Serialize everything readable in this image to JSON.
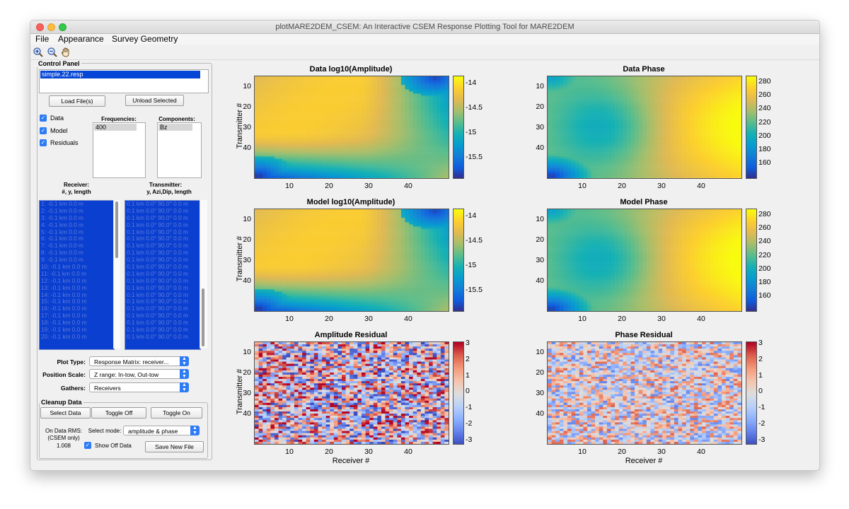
{
  "window": {
    "title": "plotMARE2DEM_CSEM: An Interactive CSEM Response Plotting Tool for MARE2DEM"
  },
  "menu": [
    "File",
    "Appearance",
    "Survey Geometry"
  ],
  "toolbar": {
    "tools": [
      "zoom-in-icon",
      "zoom-out-icon",
      "pan-hand-icon"
    ]
  },
  "control": {
    "title": "Control Panel",
    "file": "simple.22.resp",
    "load_label": "Load File(s)",
    "unload_label": "Unload Selected",
    "checks": [
      {
        "label": "Data",
        "checked": true
      },
      {
        "label": "Model",
        "checked": true
      },
      {
        "label": "Residuals",
        "checked": true
      }
    ],
    "freq_label": "Frequencies:",
    "freq_value": "400",
    "comp_label": "Components:",
    "comp_value": "Bz",
    "rx_label1": "Receiver:",
    "rx_label2": "#, y, length",
    "tx_label1": "Transmitter:",
    "tx_label2": "y, Azi,Dip, length",
    "receivers": [
      "1: -0.1 km 0.0 m",
      "2: -0.1 km 0.0 m",
      "3: -0.1 km 0.0 m",
      "4: -0.1 km 0.0 m",
      "5: -0.1 km 0.0 m",
      "6: -0.1 km 0.0 m",
      "7: -0.1 km 0.0 m",
      "8: -0.1 km 0.0 m",
      "9: -0.1 km 0.0 m",
      "10: -0.1 km 0.0 m",
      "11: -0.1 km 0.0 m",
      "12: -0.1 km 0.0 m",
      "13: -0.1 km 0.0 m",
      "14: -0.1 km 0.0 m",
      "15: -0.1 km 0.0 m",
      "16: -0.1 km 0.0 m",
      "17: -0.1 km 0.0 m",
      "18: -0.1 km 0.0 m",
      "19: -0.1 km 0.0 m",
      "20: -0.1 km 0.0 m"
    ],
    "transmitters": [
      "0.1 km 0.0° 90.0° 0.0 m",
      "0.1 km 0.0° 90.0° 0.0 m",
      "0.1 km 0.0° 90.0° 0.0 m",
      "0.1 km 0.0° 90.0° 0.0 m",
      "0.1 km 0.0° 90.0° 0.0 m",
      "0.1 km 0.0° 90.0° 0.0 m",
      "0.1 km 0.0° 90.0° 0.0 m",
      "0.1 km 0.0° 90.0° 0.0 m",
      "0.1 km 0.0° 90.0° 0.0 m",
      "0.1 km 0.0° 90.0° 0.0 m",
      "0.1 km 0.0° 90.0° 0.0 m",
      "0.1 km 0.0° 90.0° 0.0 m",
      "0.1 km 0.0° 90.0° 0.0 m",
      "0.1 km 0.0° 90.0° 0.0 m",
      "0.1 km 0.0° 90.0° 0.0 m",
      "0.1 km 0.0° 90.0° 0.0 m",
      "0.1 km 0.0° 90.0° 0.0 m",
      "0.1 km 0.0° 90.0° 0.0 m",
      "0.1 km 0.0° 90.0° 0.0 m",
      "0.1 km 0.0° 90.0° 0.0 m"
    ],
    "plot_type_label": "Plot Type:",
    "plot_type": "Response Matrix: receiver...",
    "position_scale_label": "Position Scale:",
    "position_scale": "Z range: In-tow, Out-tow",
    "gathers_label": "Gathers:",
    "gathers": "Receivers",
    "cleanup_title": "Cleanup Data",
    "select_data": "Select Data",
    "toggle_off": "Toggle Off",
    "toggle_on": "Toggle On",
    "rms_line1": "On Data RMS:",
    "rms_line2": "(CSEM only)",
    "rms_value": "1.008",
    "select_mode_label": "Select mode:",
    "select_mode": "amplitude & phase",
    "show_off_label": "Show Off Data",
    "save_label": "Save New File"
  },
  "plots": [
    {
      "title": "Data log10(Amplitude)",
      "kind": "amp",
      "cbar": [
        "-14",
        "-14.5",
        "-15",
        "-15.5"
      ]
    },
    {
      "title": "Data Phase",
      "kind": "phase",
      "cbar": [
        "280",
        "260",
        "240",
        "220",
        "200",
        "180",
        "160"
      ]
    },
    {
      "title": "Model log10(Amplitude)",
      "kind": "amp",
      "cbar": [
        "-14",
        "-14.5",
        "-15",
        "-15.5"
      ]
    },
    {
      "title": "Model Phase",
      "kind": "phase",
      "cbar": [
        "280",
        "260",
        "240",
        "220",
        "200",
        "180",
        "160"
      ]
    },
    {
      "title": "Amplitude Residual",
      "kind": "resid",
      "cbar": [
        "3",
        "2",
        "1",
        "0",
        "-1",
        "-2",
        "-3"
      ]
    },
    {
      "title": "Phase Residual",
      "kind": "resid",
      "cbar": [
        "3",
        "2",
        "1",
        "0",
        "-1",
        "-2",
        "-3"
      ]
    }
  ],
  "axes": {
    "ylabel": "Transmitter #",
    "xlabel": "Receiver #",
    "xticks": [
      "10",
      "20",
      "30",
      "40"
    ],
    "yticks": [
      "10",
      "20",
      "30",
      "40"
    ]
  },
  "colors": {
    "selection": "#0646d6",
    "checkbox": "#2e7bf6"
  }
}
